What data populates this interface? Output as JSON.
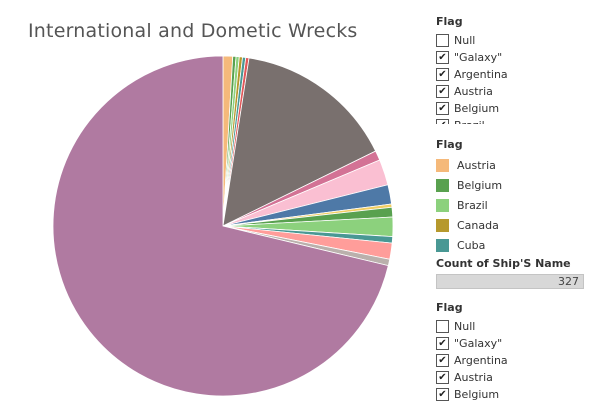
{
  "title": "International and Dometic Wrecks",
  "chart_data": {
    "type": "pie",
    "title": "International and Dometic Wrecks",
    "total": 327,
    "slices": [
      {
        "label": "Austria",
        "value": 3,
        "color": "#f5b97a"
      },
      {
        "label": "Belgium",
        "value": 1,
        "color": "#59a14f"
      },
      {
        "label": "Brazil",
        "value": 1,
        "color": "#8cd17d"
      },
      {
        "label": "Canada",
        "value": 1,
        "color": "#b6992d"
      },
      {
        "label": "Cuba",
        "value": 1,
        "color": "#499894"
      },
      {
        "label": "",
        "value": 1,
        "color": "#e15759"
      },
      {
        "label": "",
        "value": 50,
        "color": "#79706e"
      },
      {
        "label": "",
        "value": 3,
        "color": "#d37295"
      },
      {
        "label": "",
        "value": 8,
        "color": "#fabfd2"
      },
      {
        "label": "",
        "value": 6,
        "color": "#4e79a7"
      },
      {
        "label": "",
        "value": 1,
        "color": "#f1ce63"
      },
      {
        "label": "",
        "value": 3,
        "color": "#59a14f"
      },
      {
        "label": "",
        "value": 6,
        "color": "#8cd17d"
      },
      {
        "label": "",
        "value": 2,
        "color": "#499894"
      },
      {
        "label": "",
        "value": 5,
        "color": "#ff9d9a"
      },
      {
        "label": "",
        "value": 2,
        "color": "#bab0ac"
      },
      {
        "label": "",
        "value": 233,
        "color": "#b07aa1"
      }
    ]
  },
  "filter_top": {
    "title": "Flag",
    "items": [
      {
        "label": "Null",
        "checked": false
      },
      {
        "label": "\"Galaxy\"",
        "checked": true
      },
      {
        "label": "Argentina",
        "checked": true
      },
      {
        "label": "Austria",
        "checked": true
      },
      {
        "label": "Belgium",
        "checked": true
      },
      {
        "label": "Brazil",
        "checked": true
      }
    ]
  },
  "color_legend": {
    "title": "Flag",
    "items": [
      {
        "label": "Austria",
        "color": "#f5b97a"
      },
      {
        "label": "Belgium",
        "color": "#59a14f"
      },
      {
        "label": "Brazil",
        "color": "#8cd17d"
      },
      {
        "label": "Canada",
        "color": "#b6992d"
      },
      {
        "label": "Cuba",
        "color": "#499894"
      }
    ]
  },
  "size_legend": {
    "title": "Count of Ship'S Name",
    "value": "327"
  },
  "filter_bottom": {
    "title": "Flag",
    "items": [
      {
        "label": "Null",
        "checked": false
      },
      {
        "label": "\"Galaxy\"",
        "checked": true
      },
      {
        "label": "Argentina",
        "checked": true
      },
      {
        "label": "Austria",
        "checked": true
      },
      {
        "label": "Belgium",
        "checked": true
      }
    ]
  }
}
